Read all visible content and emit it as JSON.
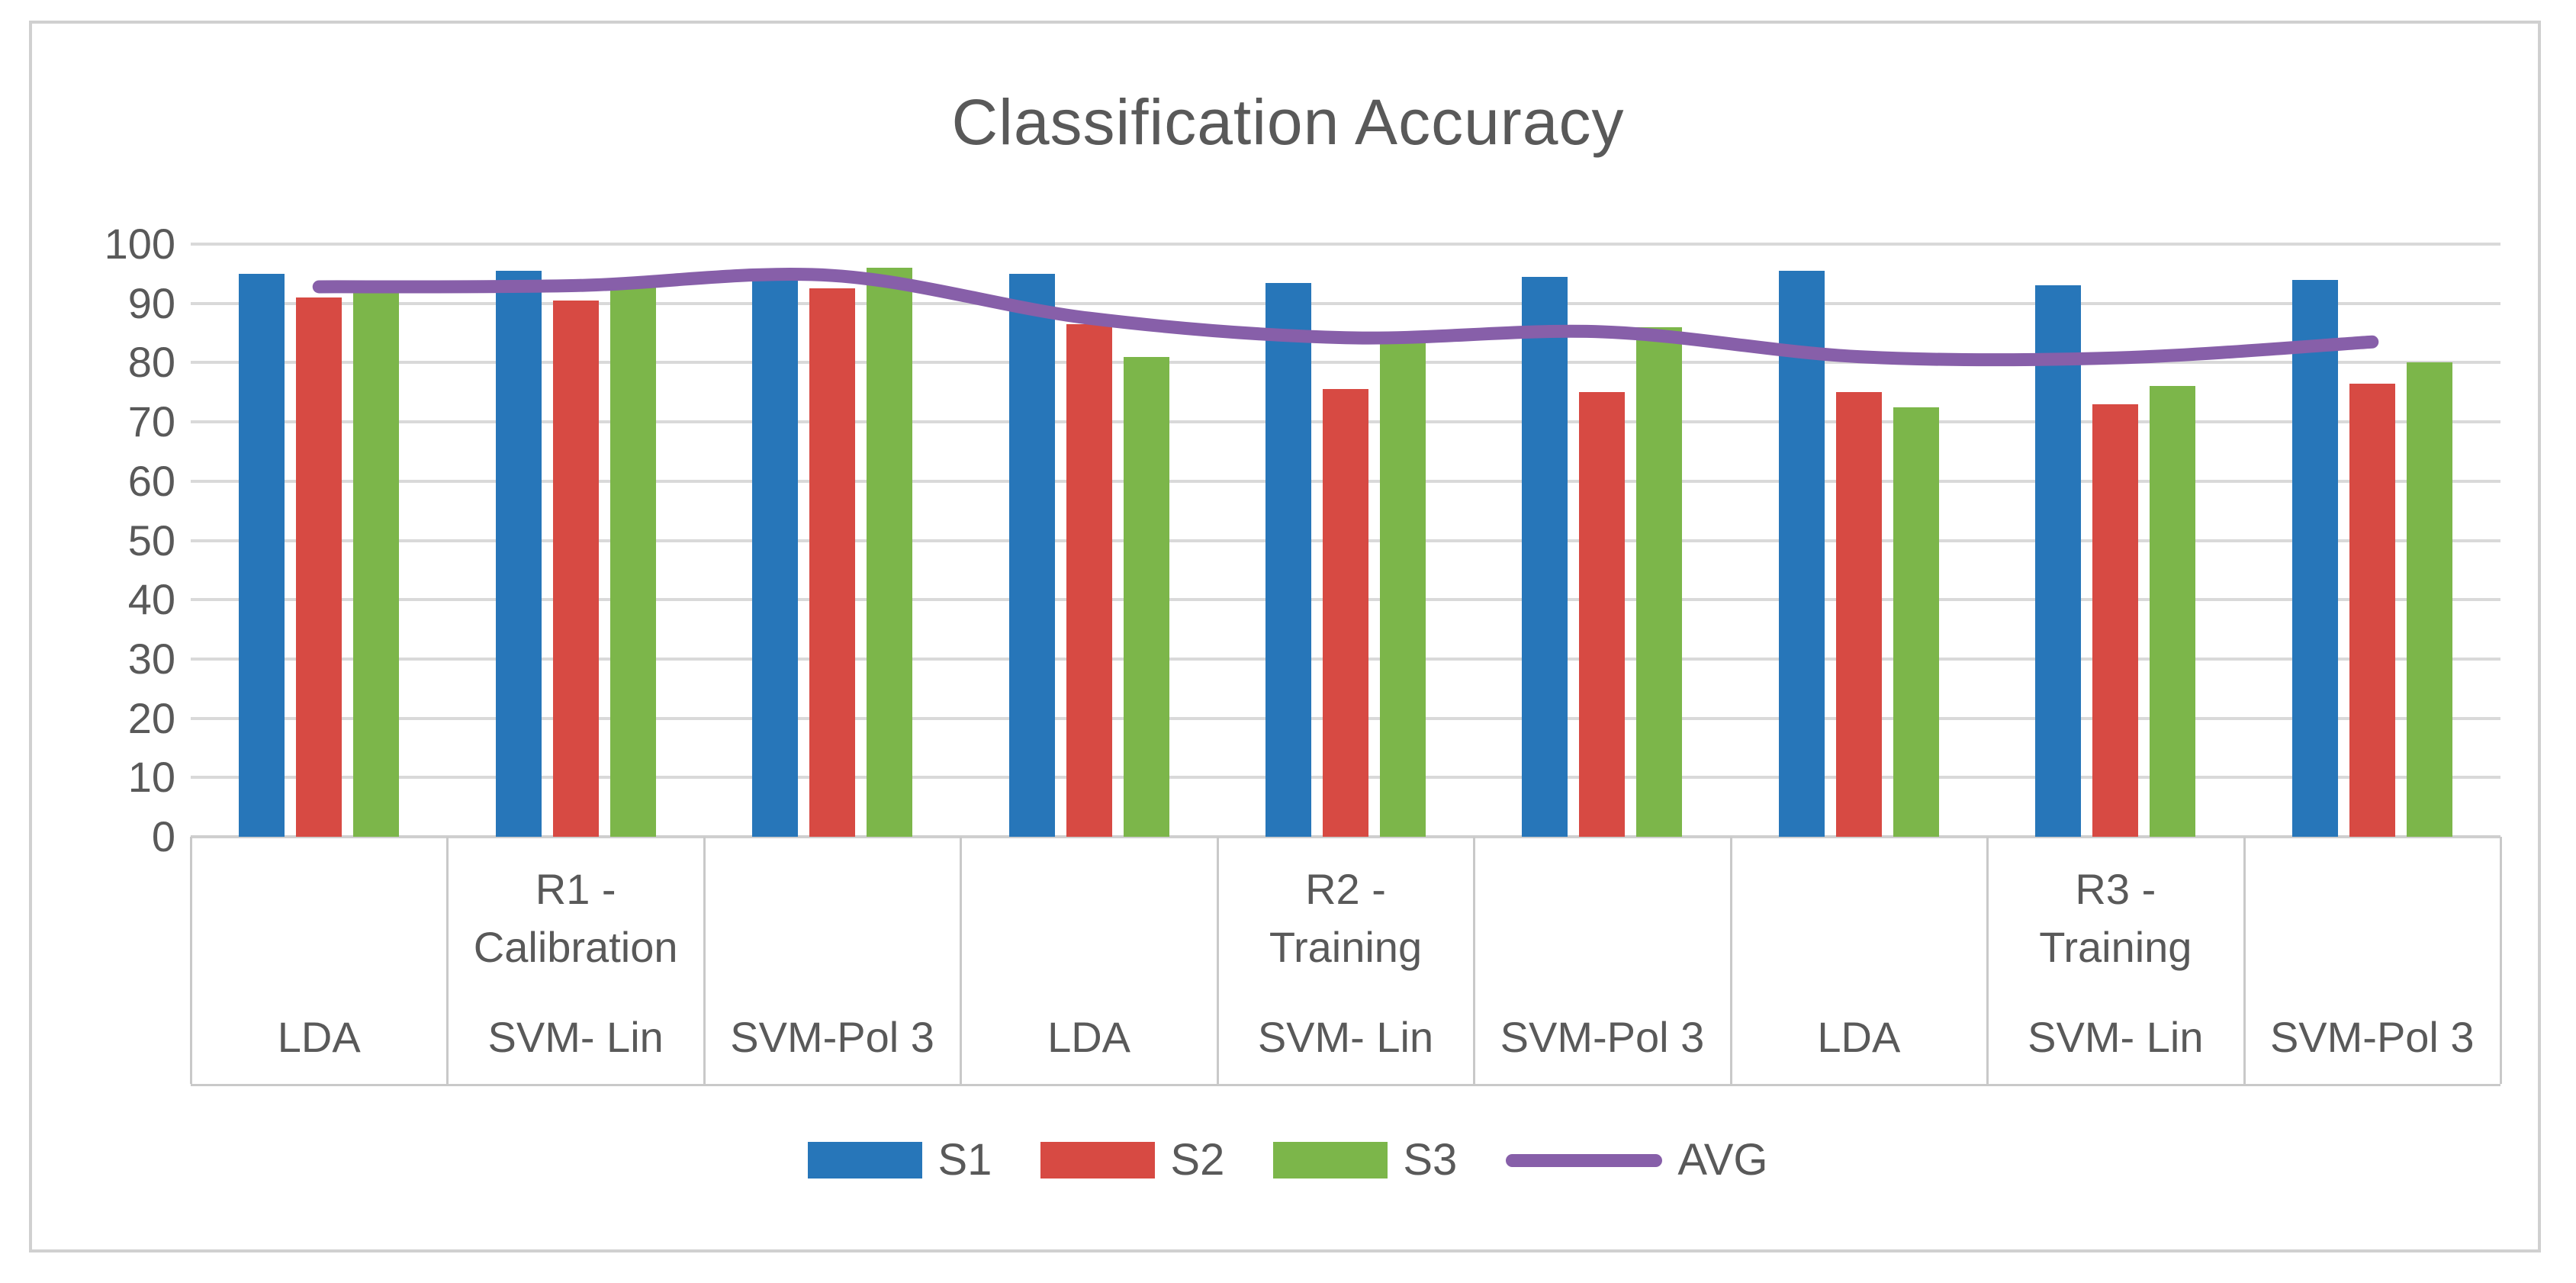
{
  "title": "Classification Accuracy",
  "colors": {
    "s1": "#2776B9",
    "s2": "#D74A43",
    "s3": "#7CB64A",
    "avg": "#875FA9",
    "text": "#595959",
    "gridline": "#D9D9D9",
    "table_border": "#C9C9C9",
    "frame_border": "#D0D0D0",
    "background": "#FFFFFF"
  },
  "y_axis": {
    "min": 0,
    "max": 100,
    "step": 10
  },
  "x_axis": {
    "categories": [
      "LDA",
      "SVM- Lin",
      "SVM-Pol 3",
      "LDA",
      "SVM- Lin",
      "SVM-Pol 3",
      "LDA",
      "SVM- Lin",
      "SVM-Pol 3"
    ],
    "groups": [
      {
        "line1": "R1 -",
        "line2": "Calibration",
        "cell": 1
      },
      {
        "line1": "R2 -",
        "line2": "Training",
        "cell": 4
      },
      {
        "line1": "R3 -",
        "line2": "Training",
        "cell": 7
      }
    ]
  },
  "legend": {
    "items": [
      {
        "label": "S1",
        "marker": "box",
        "color": "#2776B9"
      },
      {
        "label": "S2",
        "marker": "box",
        "color": "#D74A43"
      },
      {
        "label": "S3",
        "marker": "box",
        "color": "#7CB64A"
      },
      {
        "label": "AVG",
        "marker": "line",
        "color": "#875FA9"
      }
    ]
  },
  "chart_data": {
    "type": "bar",
    "title": "Classification Accuracy",
    "categories": [
      "LDA",
      "SVM- Lin",
      "SVM-Pol 3",
      "LDA",
      "SVM- Lin",
      "SVM-Pol 3",
      "LDA",
      "SVM- Lin",
      "SVM-Pol 3"
    ],
    "category_groups": [
      "R1 - Calibration",
      "R2 - Training",
      "R3 - Training"
    ],
    "y_ticks": [
      0,
      10,
      20,
      30,
      40,
      50,
      60,
      70,
      80,
      90,
      100
    ],
    "ylim": [
      0,
      100
    ],
    "grid": true,
    "legend_position": "bottom",
    "series": [
      {
        "name": "S1",
        "color": "#2776B9",
        "values": [
          95,
          95.5,
          95.5,
          95,
          93.5,
          94.5,
          95.5,
          93,
          94
        ]
      },
      {
        "name": "S2",
        "color": "#D74A43",
        "values": [
          91,
          90.5,
          92.5,
          86.5,
          75.5,
          75,
          75,
          73,
          76.5
        ]
      },
      {
        "name": "S3",
        "color": "#7CB64A",
        "values": [
          92.5,
          93,
          96,
          81,
          83.5,
          86,
          72.5,
          76,
          80
        ]
      }
    ],
    "line_series": [
      {
        "name": "AVG",
        "color": "#875FA9",
        "values": [
          92.8,
          93,
          94.7,
          87.5,
          84.2,
          85.2,
          81,
          80.8,
          83.5
        ]
      }
    ]
  }
}
